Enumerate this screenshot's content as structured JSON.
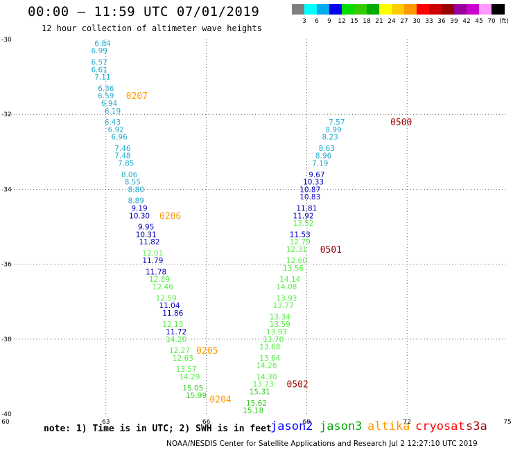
{
  "header": {
    "title": "00:00 – 11:59 UTC 07/01/2019",
    "subtitle": "12 hour collection of altimeter wave heights"
  },
  "legend": {
    "colors": [
      "#7f7f7f",
      "#00ffff",
      "#00aaee",
      "#0000ee",
      "#00dd00",
      "#33cc00",
      "#00aa00",
      "#ffff00",
      "#ffcc00",
      "#ff9900",
      "#ff0000",
      "#cc0000",
      "#990000",
      "#990099",
      "#cc00cc",
      "#ff99ff",
      "#000000"
    ],
    "labels": [
      "3",
      "6",
      "9",
      "12",
      "15",
      "18",
      "21",
      "24",
      "27",
      "30",
      "33",
      "36",
      "39",
      "42",
      "45",
      "70",
      "(ft)"
    ]
  },
  "chart_data": {
    "type": "scatter",
    "xlabel": "",
    "ylabel": "",
    "xlim": [
      60,
      75
    ],
    "ylim": [
      -40,
      -30
    ],
    "xticks": [
      "60",
      "63",
      "66",
      "69",
      "72",
      "75"
    ],
    "yticks": [
      "-30",
      "-32",
      "-34",
      "-36",
      "-38",
      "-40"
    ],
    "grid": "dotted",
    "colors": {
      "c9": "#22aacc",
      "c12": "#0000bb",
      "c15": "#55ee44",
      "c18": "#33cc22"
    },
    "points": [
      {
        "x": 62.9,
        "y": -30.1,
        "v": "6.84",
        "c": "c9"
      },
      {
        "x": 62.8,
        "y": -30.3,
        "v": "6.99",
        "c": "c9"
      },
      {
        "x": 62.8,
        "y": -30.6,
        "v": "6.57",
        "c": "c9"
      },
      {
        "x": 62.8,
        "y": -30.8,
        "v": "6.61",
        "c": "c9"
      },
      {
        "x": 62.9,
        "y": -31.0,
        "v": "7.11",
        "c": "c9"
      },
      {
        "x": 63.0,
        "y": -31.3,
        "v": "6.36",
        "c": "c9"
      },
      {
        "x": 63.0,
        "y": -31.5,
        "v": "6.59",
        "c": "c9"
      },
      {
        "x": 63.1,
        "y": -31.7,
        "v": "6.94",
        "c": "c9"
      },
      {
        "x": 63.2,
        "y": -31.9,
        "v": "6.19",
        "c": "c9"
      },
      {
        "x": 63.2,
        "y": -32.2,
        "v": "6.43",
        "c": "c9"
      },
      {
        "x": 63.3,
        "y": -32.4,
        "v": "6.92",
        "c": "c9"
      },
      {
        "x": 63.4,
        "y": -32.6,
        "v": "6.96",
        "c": "c9"
      },
      {
        "x": 63.5,
        "y": -32.9,
        "v": "7.46",
        "c": "c9"
      },
      {
        "x": 63.5,
        "y": -33.1,
        "v": "7.48",
        "c": "c9"
      },
      {
        "x": 63.6,
        "y": -33.3,
        "v": "7.85",
        "c": "c9"
      },
      {
        "x": 63.7,
        "y": -33.6,
        "v": "8.06",
        "c": "c9"
      },
      {
        "x": 63.8,
        "y": -33.8,
        "v": "8.55",
        "c": "c9"
      },
      {
        "x": 63.9,
        "y": -34.0,
        "v": "8.80",
        "c": "c9"
      },
      {
        "x": 63.9,
        "y": -34.3,
        "v": "8.89",
        "c": "c9"
      },
      {
        "x": 64.0,
        "y": -34.5,
        "v": "9.19",
        "c": "c12"
      },
      {
        "x": 64.0,
        "y": -34.7,
        "v": "10.30",
        "c": "c12"
      },
      {
        "x": 64.2,
        "y": -35.0,
        "v": "9.95",
        "c": "c12"
      },
      {
        "x": 64.2,
        "y": -35.2,
        "v": "10.31",
        "c": "c12"
      },
      {
        "x": 64.3,
        "y": -35.4,
        "v": "11.82",
        "c": "c12"
      },
      {
        "x": 64.4,
        "y": -35.7,
        "v": "12.01",
        "c": "c15"
      },
      {
        "x": 64.4,
        "y": -35.9,
        "v": "11.79",
        "c": "c12"
      },
      {
        "x": 64.5,
        "y": -36.2,
        "v": "11.78",
        "c": "c12"
      },
      {
        "x": 64.6,
        "y": -36.4,
        "v": "12.89",
        "c": "c15"
      },
      {
        "x": 64.7,
        "y": -36.6,
        "v": "12.46",
        "c": "c15"
      },
      {
        "x": 64.8,
        "y": -36.9,
        "v": "12.59",
        "c": "c15"
      },
      {
        "x": 64.9,
        "y": -37.1,
        "v": "11.04",
        "c": "c12"
      },
      {
        "x": 65.0,
        "y": -37.3,
        "v": "11.86",
        "c": "c12"
      },
      {
        "x": 65.0,
        "y": -37.6,
        "v": "12.13",
        "c": "c15"
      },
      {
        "x": 65.1,
        "y": -37.8,
        "v": "11.72",
        "c": "c12"
      },
      {
        "x": 65.1,
        "y": -38.0,
        "v": "14.20",
        "c": "c15"
      },
      {
        "x": 65.2,
        "y": -38.3,
        "v": "12.27",
        "c": "c15"
      },
      {
        "x": 65.3,
        "y": -38.5,
        "v": "12.63",
        "c": "c15"
      },
      {
        "x": 65.4,
        "y": -38.8,
        "v": "13.57",
        "c": "c15"
      },
      {
        "x": 65.5,
        "y": -39.0,
        "v": "14.29",
        "c": "c15"
      },
      {
        "x": 65.6,
        "y": -39.3,
        "v": "15.05",
        "c": "c18"
      },
      {
        "x": 65.7,
        "y": -39.5,
        "v": "15.99",
        "c": "c18"
      },
      {
        "x": 69.9,
        "y": -32.2,
        "v": "7.57",
        "c": "c9"
      },
      {
        "x": 69.8,
        "y": -32.4,
        "v": "8.99",
        "c": "c9"
      },
      {
        "x": 69.7,
        "y": -32.6,
        "v": "8.23",
        "c": "c9"
      },
      {
        "x": 69.6,
        "y": -32.9,
        "v": "8.63",
        "c": "c9"
      },
      {
        "x": 69.5,
        "y": -33.1,
        "v": "8.96",
        "c": "c9"
      },
      {
        "x": 69.4,
        "y": -33.3,
        "v": "7.19",
        "c": "c9"
      },
      {
        "x": 69.3,
        "y": -33.6,
        "v": "9.67",
        "c": "c12"
      },
      {
        "x": 69.2,
        "y": -33.8,
        "v": "10.33",
        "c": "c12"
      },
      {
        "x": 69.1,
        "y": -34.0,
        "v": "10.87",
        "c": "c12"
      },
      {
        "x": 69.1,
        "y": -34.2,
        "v": "10.83",
        "c": "c12"
      },
      {
        "x": 69.0,
        "y": -34.5,
        "v": "11.81",
        "c": "c12"
      },
      {
        "x": 68.9,
        "y": -34.7,
        "v": "11.92",
        "c": "c12"
      },
      {
        "x": 68.9,
        "y": -34.9,
        "v": "13.52",
        "c": "c15"
      },
      {
        "x": 68.8,
        "y": -35.2,
        "v": "11.53",
        "c": "c12"
      },
      {
        "x": 68.8,
        "y": -35.4,
        "v": "12.79",
        "c": "c15"
      },
      {
        "x": 68.7,
        "y": -35.6,
        "v": "12.31",
        "c": "c15"
      },
      {
        "x": 68.7,
        "y": -35.9,
        "v": "12.60",
        "c": "c15"
      },
      {
        "x": 68.6,
        "y": -36.1,
        "v": "13.56",
        "c": "c15"
      },
      {
        "x": 68.5,
        "y": -36.4,
        "v": "14.14",
        "c": "c15"
      },
      {
        "x": 68.4,
        "y": -36.6,
        "v": "14.08",
        "c": "c15"
      },
      {
        "x": 68.4,
        "y": -36.9,
        "v": "13.93",
        "c": "c15"
      },
      {
        "x": 68.3,
        "y": -37.1,
        "v": "13.77",
        "c": "c15"
      },
      {
        "x": 68.2,
        "y": -37.4,
        "v": "13.34",
        "c": "c15"
      },
      {
        "x": 68.2,
        "y": -37.6,
        "v": "13.59",
        "c": "c15"
      },
      {
        "x": 68.1,
        "y": -37.8,
        "v": "13.93",
        "c": "c15"
      },
      {
        "x": 68.0,
        "y": -38.0,
        "v": "13.70",
        "c": "c15"
      },
      {
        "x": 67.9,
        "y": -38.2,
        "v": "13.68",
        "c": "c15"
      },
      {
        "x": 67.9,
        "y": -38.5,
        "v": "13.64",
        "c": "c15"
      },
      {
        "x": 67.8,
        "y": -38.7,
        "v": "14.26",
        "c": "c15"
      },
      {
        "x": 67.8,
        "y": -39.0,
        "v": "14.30",
        "c": "c15"
      },
      {
        "x": 67.7,
        "y": -39.2,
        "v": "13.73",
        "c": "c15"
      },
      {
        "x": 67.6,
        "y": -39.4,
        "v": "15.31",
        "c": "c18"
      },
      {
        "x": 67.5,
        "y": -39.7,
        "v": "15.62",
        "c": "c18"
      },
      {
        "x": 67.4,
        "y": -39.9,
        "v": "15.18",
        "c": "c18"
      }
    ],
    "time_labels": [
      {
        "x": 63.6,
        "y": -31.5,
        "v": "0207",
        "color": "#ff9900"
      },
      {
        "x": 64.6,
        "y": -34.7,
        "v": "0206",
        "color": "#ff9900"
      },
      {
        "x": 65.7,
        "y": -38.3,
        "v": "0205",
        "color": "#ff9900"
      },
      {
        "x": 66.1,
        "y": -39.6,
        "v": "0204",
        "color": "#ff9900"
      },
      {
        "x": 71.5,
        "y": -32.2,
        "v": "0500",
        "color": "#990000"
      },
      {
        "x": 69.4,
        "y": -35.6,
        "v": "0501",
        "color": "#990000"
      },
      {
        "x": 68.4,
        "y": -39.2,
        "v": "0502",
        "color": "#990000"
      }
    ]
  },
  "footer": {
    "note": "note: 1) Time is in UTC; 2) SWH is in feet",
    "satellites": [
      {
        "name": "jason2",
        "color": "#0000ff"
      },
      {
        "name": "jason3",
        "color": "#00aa00"
      },
      {
        "name": "altika",
        "color": "#ff9900"
      },
      {
        "name": "cryosat",
        "color": "#ff0000"
      },
      {
        "name": "s3a",
        "color": "#990000"
      }
    ],
    "credit": "NOAA/NESDIS Center for Satellite Applications and Research   Jul  2 12:27:10 UTC 2019"
  }
}
